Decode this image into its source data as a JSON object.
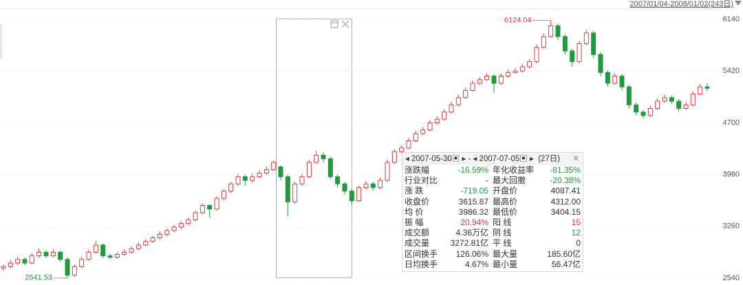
{
  "chart_data": {
    "type": "candlestick",
    "range_label": "2007/01/04-2008/01/02(243日)",
    "ylim": [
      2540,
      6140
    ],
    "yticks": [
      2540,
      3260,
      3980,
      4700,
      5420,
      6140
    ],
    "grid": true,
    "up_color": "#e23a3a",
    "down_color": "#1f9a3c",
    "max_label": 6124.04,
    "min_label": 2541.53,
    "ohlc": [
      [
        2680,
        2730,
        2640,
        2700
      ],
      [
        2700,
        2790,
        2670,
        2750
      ],
      [
        2750,
        2840,
        2720,
        2800
      ],
      [
        2800,
        2830,
        2720,
        2750
      ],
      [
        2750,
        2890,
        2730,
        2850
      ],
      [
        2850,
        2950,
        2820,
        2900
      ],
      [
        2900,
        2930,
        2820,
        2850
      ],
      [
        2850,
        2940,
        2830,
        2900
      ],
      [
        2900,
        2920,
        2770,
        2800
      ],
      [
        2800,
        2830,
        2541.53,
        2580
      ],
      [
        2580,
        2730,
        2560,
        2700
      ],
      [
        2700,
        2840,
        2680,
        2800
      ],
      [
        2800,
        2940,
        2780,
        2900
      ],
      [
        2900,
        3060,
        2880,
        3000
      ],
      [
        3000,
        3020,
        2820,
        2850
      ],
      [
        2850,
        2880,
        2800,
        2830
      ],
      [
        2830,
        2900,
        2810,
        2870
      ],
      [
        2870,
        2940,
        2850,
        2900
      ],
      [
        2900,
        2980,
        2880,
        2950
      ],
      [
        2950,
        3040,
        2930,
        3000
      ],
      [
        3000,
        3080,
        2980,
        3050
      ],
      [
        3050,
        3130,
        3030,
        3100
      ],
      [
        3100,
        3190,
        3080,
        3150
      ],
      [
        3150,
        3230,
        3120,
        3200
      ],
      [
        3200,
        3280,
        3180,
        3250
      ],
      [
        3250,
        3330,
        3220,
        3300
      ],
      [
        3300,
        3380,
        3280,
        3350
      ],
      [
        3350,
        3480,
        3330,
        3450
      ],
      [
        3450,
        3580,
        3430,
        3550
      ],
      [
        3550,
        3570,
        3380,
        3500
      ],
      [
        3500,
        3680,
        3480,
        3650
      ],
      [
        3650,
        3780,
        3620,
        3750
      ],
      [
        3750,
        3880,
        3720,
        3850
      ],
      [
        3850,
        3990,
        3820,
        3950
      ],
      [
        3950,
        3980,
        3830,
        3900
      ],
      [
        3900,
        3990,
        3870,
        3950
      ],
      [
        3950,
        4040,
        3930,
        4000
      ],
      [
        4000,
        4090,
        3980,
        4050
      ],
      [
        4050,
        4180,
        4030,
        4150
      ],
      [
        4087.41,
        4110,
        3900,
        3950
      ],
      [
        3950,
        3980,
        3404.15,
        3600
      ],
      [
        3600,
        3880,
        3580,
        3850
      ],
      [
        3850,
        3990,
        3820,
        3950
      ],
      [
        3950,
        4190,
        3930,
        4150
      ],
      [
        4150,
        4312,
        4130,
        4250
      ],
      [
        4250,
        4290,
        4150,
        4200
      ],
      [
        4200,
        4230,
        3920,
        3950
      ],
      [
        3950,
        3980,
        3800,
        3850
      ],
      [
        3850,
        3880,
        3700,
        3750
      ],
      [
        3750,
        3780,
        3560,
        3615.87
      ],
      [
        3615.87,
        3830,
        3600,
        3800
      ],
      [
        3800,
        3890,
        3770,
        3850
      ],
      [
        3850,
        3880,
        3760,
        3800
      ],
      [
        3800,
        3940,
        3780,
        3900
      ],
      [
        3900,
        4190,
        3880,
        4150
      ],
      [
        4150,
        4340,
        4130,
        4300
      ],
      [
        4300,
        4390,
        4280,
        4350
      ],
      [
        4350,
        4490,
        4330,
        4450
      ],
      [
        4450,
        4590,
        4430,
        4550
      ],
      [
        4550,
        4640,
        4530,
        4600
      ],
      [
        4600,
        4740,
        4580,
        4700
      ],
      [
        4700,
        4790,
        4680,
        4750
      ],
      [
        4750,
        4890,
        4730,
        4850
      ],
      [
        4850,
        4990,
        4830,
        4950
      ],
      [
        4950,
        5090,
        4930,
        5050
      ],
      [
        5050,
        5190,
        5030,
        5150
      ],
      [
        5150,
        5290,
        5130,
        5250
      ],
      [
        5250,
        5340,
        5230,
        5300
      ],
      [
        5300,
        5390,
        5280,
        5350
      ],
      [
        5350,
        5380,
        5120,
        5250
      ],
      [
        5250,
        5390,
        5230,
        5350
      ],
      [
        5350,
        5440,
        5330,
        5400
      ],
      [
        5400,
        5460,
        5380,
        5420
      ],
      [
        5420,
        5520,
        5400,
        5480
      ],
      [
        5480,
        5590,
        5460,
        5550
      ],
      [
        5550,
        5790,
        5530,
        5750
      ],
      [
        5750,
        5940,
        5730,
        5900
      ],
      [
        5900,
        6124.04,
        5880,
        6050
      ],
      [
        6050,
        6080,
        5850,
        5900
      ],
      [
        5900,
        5930,
        5650,
        5700
      ],
      [
        5700,
        5730,
        5480,
        5550
      ],
      [
        5550,
        5840,
        5530,
        5800
      ],
      [
        5800,
        5990,
        5780,
        5950
      ],
      [
        5950,
        5980,
        5600,
        5650
      ],
      [
        5650,
        5680,
        5350,
        5400
      ],
      [
        5400,
        5430,
        5200,
        5250
      ],
      [
        5250,
        5390,
        5230,
        5350
      ],
      [
        5350,
        5380,
        5150,
        5200
      ],
      [
        5200,
        5230,
        4900,
        4950
      ],
      [
        4950,
        4980,
        4800,
        4850
      ],
      [
        4850,
        4880,
        4760,
        4800
      ],
      [
        4800,
        4940,
        4780,
        4900
      ],
      [
        4900,
        5040,
        4880,
        5000
      ],
      [
        5000,
        5090,
        4980,
        5050
      ],
      [
        5050,
        5080,
        4960,
        5000
      ],
      [
        5000,
        5030,
        4860,
        4900
      ],
      [
        4900,
        4990,
        4880,
        4950
      ],
      [
        4950,
        5140,
        4930,
        5100
      ],
      [
        5100,
        5240,
        5080,
        5200
      ],
      [
        5200,
        5250,
        5140,
        5180
      ]
    ],
    "panel": {
      "start": "2007-05-30",
      "end": "2007-07-05",
      "days": "(27日)",
      "rows": [
        [
          "涨跌幅",
          "-16.59%",
          "年化收益率",
          "-81.35%"
        ],
        [
          "行业对比",
          "-",
          "最大回撤",
          "-20.38%"
        ],
        [
          "涨 跌",
          "-719.05",
          "开盘价",
          "4087.41"
        ],
        [
          "收盘价",
          "3615.87",
          "最高价",
          "4312.00"
        ],
        [
          "均 价",
          "3986.32",
          "最低价",
          "3404.15"
        ],
        [
          "振 幅",
          "20.94%",
          "阳 线",
          "15"
        ],
        [
          "成交额",
          "4.36万亿",
          "阴 线",
          "12"
        ],
        [
          "成交量",
          "3272.81亿",
          "平 线",
          "0"
        ],
        [
          "区间换手",
          "126.06%",
          "最大量",
          "185.60亿"
        ],
        [
          "日均换手",
          "4.67%",
          "最小量",
          "56.47亿"
        ]
      ]
    }
  }
}
